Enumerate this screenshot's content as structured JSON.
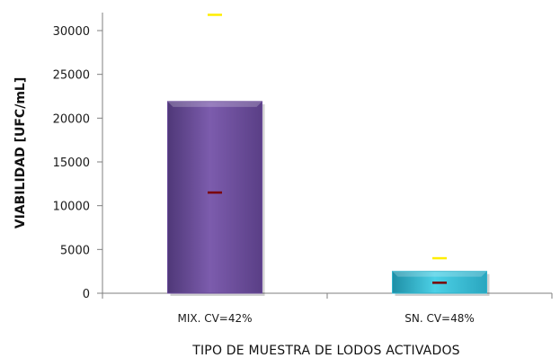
{
  "chart_data": {
    "type": "bar",
    "title": "",
    "xlabel": "TIPO DE MUESTRA DE LODOS ACTIVADOS",
    "ylabel": "VIABILIDAD [UFC/mL]",
    "categories": [
      "MIX. CV=42%",
      "SN. CV=48%"
    ],
    "values": [
      21900,
      2500
    ],
    "error_bars": [
      {
        "low": 11500,
        "high": 31800
      },
      {
        "low": 1200,
        "high": 4000
      }
    ],
    "ylim": [
      0,
      30000
    ],
    "yticks": [
      0,
      5000,
      10000,
      15000,
      20000,
      25000,
      30000
    ],
    "grid": false,
    "legend": "none",
    "colors": {
      "bars": [
        "#6a4b9a",
        "#2fb3cc"
      ],
      "error_low": "#7a0000",
      "error_high": "#ffee00"
    }
  }
}
